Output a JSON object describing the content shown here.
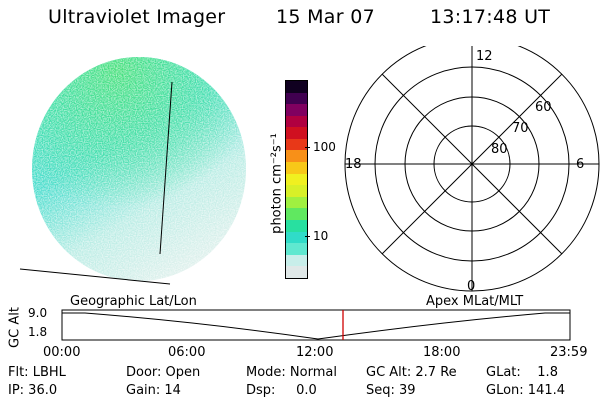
{
  "header": {
    "instrument": "Ultraviolet Imager",
    "date": "15 Mar 07",
    "time": "13:17:48 UT"
  },
  "colorbar": {
    "unit_label": "photon cm⁻²s⁻¹",
    "tick_labels": [
      "100",
      "10"
    ],
    "colors": [
      "#e0e8e8",
      "#c8eeea",
      "#5fe8d0",
      "#30dcc8",
      "#28e0a0",
      "#60e860",
      "#a0f040",
      "#d8f028",
      "#f0f020",
      "#f8c818",
      "#f89018",
      "#e83818",
      "#d01020",
      "#b00040",
      "#800060",
      "#400050",
      "#100020"
    ]
  },
  "polar_plot": {
    "mlt_labels": {
      "top": "12",
      "bottom": "0",
      "left": "18",
      "right": "6"
    },
    "lat_labels": [
      "60",
      "70",
      "80"
    ]
  },
  "timeline": {
    "y_axis_label": "GC Alt",
    "y_ticks": [
      "9.0",
      "1.8"
    ],
    "left_title": "Geographic Lat/Lon",
    "right_title": "Apex MLat/MLT",
    "x_ticks": [
      "00:00",
      "06:00",
      "12:00",
      "18:00",
      "23:59"
    ]
  },
  "status": {
    "flt": "Flt: LBHL",
    "ip": "IP: 36.0",
    "door": "Door: Open",
    "gain": "Gain: 14",
    "mode": "Mode: Normal",
    "dsp": "Dsp:     0.0",
    "gc_alt": "GC Alt: 2.7 Re",
    "seq": "Seq: 39",
    "glat": "GLat:    1.8",
    "glon": "GLon: 141.4"
  }
}
